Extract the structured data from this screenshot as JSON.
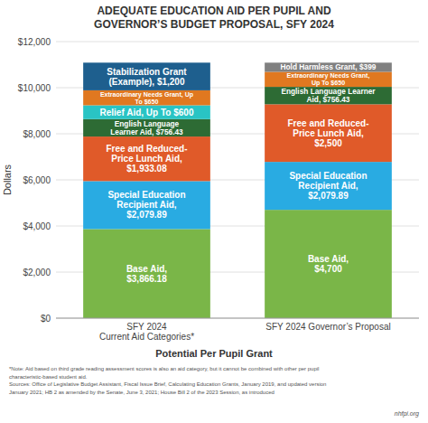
{
  "chart_data": {
    "type": "bar",
    "stacked": true,
    "grid": true,
    "data_labels": true,
    "title": "ADEQUATE EDUCATION AID PER PUPIL AND\nGOVERNOR’S BUDGET PROPOSAL, SFY 2024",
    "x_label": "Potential Per Pupil Grant",
    "y_label": "Dollars",
    "categories": [
      "SFY 2024\nCurrent Aid Categories*",
      "SFY 2024 Governor’s Proposal"
    ],
    "ylim": [
      0,
      12000
    ],
    "yticks": [
      {
        "value": 0,
        "label": "$0"
      },
      {
        "value": 2000,
        "label": "$2,000"
      },
      {
        "value": 4000,
        "label": "$4,000"
      },
      {
        "value": 6000,
        "label": "$6,000"
      },
      {
        "value": 8000,
        "label": "$8,000"
      },
      {
        "value": 10000,
        "label": "$10,000"
      },
      {
        "value": 12000,
        "label": "$12,000"
      }
    ],
    "series": [
      {
        "color": "#7ab648",
        "values": [
          3866.18,
          4700
        ],
        "value_labels": [
          "Base Aid,\n$3,866.18",
          "Base Aid,\n$4,700"
        ]
      },
      {
        "color": "#29abe2",
        "values": [
          2079.89,
          2079.89
        ],
        "value_labels": [
          "Special Education\nRecipient Aid,\n$2,079.89",
          "Special Education\nRecipient Aid,\n$2,079.89"
        ]
      },
      {
        "color": "#e05a29",
        "values": [
          1933.08,
          2500
        ],
        "value_labels": [
          "Free and Reduced-\nPrice Lunch Aid,\n$1,933.08",
          "Free and Reduced-\nPrice Lunch Aid,\n$2,500"
        ]
      },
      {
        "color": "#2d6b34",
        "values": [
          756.43,
          756.43
        ],
        "value_labels": [
          "English Language\nLearner Aid, $756.43",
          "English Language Learner\nAid, $756.43"
        ]
      },
      {
        "color": "#29c4c4",
        "values": [
          600,
          null
        ],
        "value_labels": [
          "Relief Aid, Up To $600",
          null
        ]
      },
      {
        "color": "#e07820",
        "values": [
          650,
          650
        ],
        "value_labels": [
          "Extraordinary Needs Grant, Up\nTo $650",
          "Extraordinary Needs Grant,\nUp To $650"
        ]
      },
      {
        "color": "#1e5f8e",
        "values": [
          1200,
          null
        ],
        "value_labels": [
          "Stabilization Grant\n(Example), $1,200",
          null
        ]
      },
      {
        "color": "#808080",
        "values": [
          null,
          399
        ],
        "value_labels": [
          null,
          "Hold Harmless Grant, $399"
        ]
      }
    ],
    "annotations": [
      "*Note: Aid based on third grade reading assessment scores is also an aid category, but it cannot be combined with other per pupil",
      "characteristic-based student aid.",
      "Sources: Office of Legislative Budget Assistant, Fiscal Issue Brief, Calculating Education Grants, January 2019, and updated version",
      "January 2021; HB 2 as amended by the Senate, June 3, 2021; House Bill 2 of the 2023 Session, as introduced",
      "nhfpi.org"
    ]
  }
}
